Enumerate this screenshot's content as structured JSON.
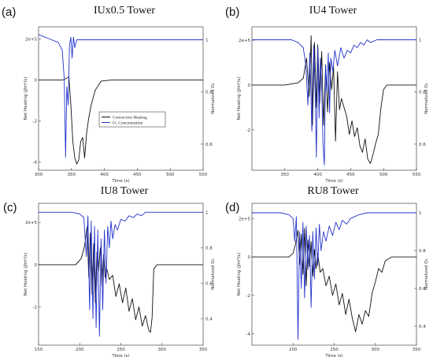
{
  "chart_data": [
    {
      "panel": "(a)",
      "title": "IUx0.5 Tower",
      "type": "line",
      "xlabel": "Time (s)",
      "ylabel": "Net Heating (J/m²/s)",
      "y2label": "Normalized O₂",
      "xlim": [
        300,
        550
      ],
      "ylim": [
        -4.4,
        2.6
      ],
      "y2lim": [
        0.5,
        1.05
      ],
      "xticks": [
        "300",
        "350",
        "400",
        "450",
        "500",
        "550"
      ],
      "yticks": [
        {
          "v": 2,
          "t": "2e+5"
        },
        {
          "v": 0,
          "t": "0"
        },
        {
          "v": -2,
          "t": "-2"
        },
        {
          "v": -4,
          "t": "-4"
        }
      ],
      "y2ticks": [
        {
          "v": 1,
          "t": "1"
        },
        {
          "v": 0.8,
          "t": "0.8"
        },
        {
          "v": 0.6,
          "t": "0.6"
        }
      ],
      "legend": [
        "Convective Heating",
        "O₂ Concentration"
      ],
      "series": [
        {
          "name": "Convective Heating",
          "color": "#111111",
          "axis": "left",
          "x": [
            300,
            320,
            335,
            338,
            342,
            346,
            349,
            352,
            355,
            358,
            361,
            364,
            367,
            370,
            373,
            376,
            380,
            386,
            395,
            410,
            450,
            500,
            550
          ],
          "y": [
            0,
            0,
            0,
            0.02,
            0.08,
            0.15,
            -1.2,
            -3.0,
            -3.8,
            -4.1,
            -3.9,
            -3.0,
            -2.8,
            -3.8,
            -2.6,
            -1.9,
            -1.2,
            -0.5,
            -0.05,
            0,
            0,
            0,
            0
          ]
        },
        {
          "name": "O₂ Concentration",
          "color": "#2233cc",
          "axis": "right",
          "x": [
            300,
            320,
            330,
            336,
            339,
            341,
            343,
            345,
            347,
            349,
            351,
            353,
            355,
            358,
            362,
            370,
            400,
            450,
            500,
            550
          ],
          "y": [
            1.02,
            1.0,
            0.99,
            0.96,
            0.85,
            0.55,
            0.82,
            0.75,
            0.98,
            1.01,
            0.93,
            1.01,
            0.97,
            1.0,
            1.0,
            1.0,
            1.0,
            1.0,
            1.0,
            1.0
          ]
        }
      ]
    },
    {
      "panel": "(b)",
      "title": "IU4 Tower",
      "type": "line",
      "xlabel": "Time (s)",
      "ylabel": "Net Heating (J/m²/s)",
      "y2label": "Normalized O₂",
      "xlim": [
        300,
        550
      ],
      "ylim": [
        -3.8,
        2.6
      ],
      "y2lim": [
        0.5,
        1.05
      ],
      "xticks": [
        "350",
        "400",
        "450",
        "500",
        "550"
      ],
      "yticks": [
        {
          "v": 2,
          "t": "2e+5"
        },
        {
          "v": 0,
          "t": "0"
        },
        {
          "v": -2,
          "t": "-2"
        }
      ],
      "y2ticks": [
        {
          "v": 1,
          "t": "1"
        },
        {
          "v": 0.8,
          "t": "0.8"
        },
        {
          "v": 0.6,
          "t": "0.6"
        }
      ],
      "series": [
        {
          "name": "Convective Heating",
          "color": "#111111",
          "axis": "left",
          "x": [
            300,
            350,
            370,
            378,
            383,
            387,
            390,
            392,
            395,
            398,
            400,
            403,
            406,
            409,
            412,
            415,
            418,
            421,
            424,
            427,
            430,
            433,
            436,
            440,
            444,
            448,
            452,
            456,
            460,
            464,
            468,
            472,
            476,
            480,
            484,
            488,
            492,
            496,
            500,
            505,
            510,
            530,
            550
          ],
          "y": [
            0,
            0,
            0.1,
            0.3,
            1.2,
            -0.5,
            2.2,
            -1.8,
            1.9,
            -1.0,
            1.8,
            -0.8,
            1.5,
            -1.8,
            0.9,
            -1.2,
            1.0,
            -0.2,
            0.8,
            -2.5,
            0.6,
            -1.1,
            -0.6,
            -1.0,
            -1.4,
            -2.2,
            -1.6,
            -2.3,
            -1.9,
            -2.7,
            -3.0,
            -2.4,
            -3.3,
            -3.5,
            -3.1,
            -2.6,
            -2.2,
            -1.0,
            -0.2,
            0,
            0,
            0,
            0
          ]
        },
        {
          "name": "O₂ Concentration",
          "color": "#2233cc",
          "axis": "right",
          "x": [
            300,
            340,
            360,
            370,
            378,
            382,
            385,
            388,
            391,
            394,
            396,
            398,
            400,
            402,
            404,
            406,
            408,
            410,
            412,
            414,
            416,
            418,
            420,
            423,
            426,
            430,
            435,
            440,
            445,
            450,
            455,
            460,
            465,
            470,
            475,
            480,
            490,
            510,
            550
          ],
          "y": [
            1.0,
            1.0,
            1.0,
            0.99,
            0.97,
            0.9,
            0.75,
            0.95,
            0.65,
            0.98,
            0.8,
            0.55,
            0.97,
            0.7,
            0.93,
            0.82,
            0.6,
            0.52,
            0.9,
            0.8,
            0.95,
            0.72,
            0.93,
            0.88,
            0.96,
            0.9,
            0.97,
            0.93,
            0.96,
            0.95,
            0.98,
            0.97,
            0.99,
            0.98,
            1.0,
            0.99,
            1.0,
            1.0,
            1.0
          ]
        }
      ]
    },
    {
      "panel": "(c)",
      "title": "IU8 Tower",
      "type": "line",
      "xlabel": "Time (s)",
      "ylabel": "Net Heating (J/m²/s)",
      "y2label": "Normalized O₂",
      "xlim": [
        150,
        350
      ],
      "ylim": [
        -3.8,
        2.9
      ],
      "y2lim": [
        0.25,
        1.05
      ],
      "xticks": [
        "150",
        "200",
        "250",
        "300",
        "350"
      ],
      "yticks": [
        {
          "v": 2,
          "t": "2e+5"
        },
        {
          "v": 0,
          "t": "0"
        },
        {
          "v": -2,
          "t": "-2"
        }
      ],
      "y2ticks": [
        {
          "v": 1,
          "t": "1"
        },
        {
          "v": 0.8,
          "t": "0.8"
        },
        {
          "v": 0.6,
          "t": "0.6"
        },
        {
          "v": 0.4,
          "t": "0.4"
        }
      ],
      "series": [
        {
          "name": "Convective Heating",
          "color": "#111111",
          "axis": "left",
          "x": [
            150,
            195,
            202,
            206,
            209,
            211,
            213,
            215,
            217,
            219,
            221,
            223,
            225,
            227,
            229,
            231,
            233,
            236,
            240,
            244,
            248,
            252,
            256,
            260,
            264,
            268,
            272,
            276,
            280,
            284,
            286,
            288,
            290,
            294,
            300,
            320,
            350
          ],
          "y": [
            0,
            0,
            0.3,
            0.9,
            1.8,
            -0.6,
            1.5,
            -1.4,
            1.0,
            -1.8,
            0.6,
            -0.3,
            0.8,
            -1.0,
            0.5,
            -0.6,
            -0.2,
            -0.7,
            -0.5,
            -1.5,
            -0.9,
            -1.8,
            -1.1,
            -2.2,
            -1.6,
            -2.6,
            -2.0,
            -2.9,
            -2.4,
            -3.1,
            -3.2,
            -2.5,
            -0.2,
            0,
            0,
            0,
            0
          ]
        },
        {
          "name": "O₂ Concentration",
          "color": "#2233cc",
          "axis": "right",
          "x": [
            150,
            190,
            200,
            205,
            208,
            210,
            212,
            214,
            216,
            218,
            220,
            222,
            224,
            226,
            228,
            230,
            232,
            234,
            236,
            238,
            240,
            243,
            246,
            250,
            255,
            260,
            265,
            270,
            275,
            280,
            285,
            300,
            350
          ],
          "y": [
            1.0,
            1.0,
            0.99,
            0.97,
            0.75,
            0.98,
            0.45,
            0.95,
            0.4,
            0.92,
            0.35,
            0.9,
            0.3,
            0.85,
            0.45,
            0.9,
            0.6,
            0.92,
            0.8,
            0.95,
            0.85,
            0.93,
            0.9,
            0.96,
            0.95,
            0.98,
            0.97,
            0.99,
            0.98,
            1.0,
            1.0,
            1.0,
            1.0
          ]
        }
      ]
    },
    {
      "panel": "(d)",
      "title": "RU8 Tower",
      "type": "line",
      "xlabel": "Time (s)",
      "ylabel": "Net Heating (J/m²/s)",
      "y2label": "Normalized O₂",
      "xlim": [
        150,
        350
      ],
      "ylim": [
        -4.6,
        2.8
      ],
      "y2lim": [
        0.3,
        1.05
      ],
      "xticks": [
        "200",
        "250",
        "300",
        "350"
      ],
      "yticks": [
        {
          "v": 2,
          "t": "2e+5"
        },
        {
          "v": 0,
          "t": "0"
        },
        {
          "v": -2,
          "t": "-2"
        },
        {
          "v": -4,
          "t": "-4"
        }
      ],
      "y2ticks": [
        {
          "v": 1,
          "t": "1"
        },
        {
          "v": 0.8,
          "t": "0.8"
        },
        {
          "v": 0.6,
          "t": "0.6"
        },
        {
          "v": 0.4,
          "t": "0.4"
        }
      ],
      "series": [
        {
          "name": "Convective Heating",
          "color": "#111111",
          "axis": "left",
          "x": [
            150,
            195,
            200,
            203,
            206,
            208,
            210,
            212,
            214,
            216,
            218,
            220,
            222,
            224,
            226,
            228,
            230,
            233,
            236,
            240,
            244,
            248,
            252,
            256,
            260,
            264,
            268,
            272,
            276,
            280,
            284,
            288,
            292,
            296,
            300,
            304,
            308,
            312,
            320,
            335,
            350
          ],
          "y": [
            0,
            0,
            0.2,
            0.7,
            1.4,
            -0.4,
            1.2,
            -0.9,
            1.5,
            -1.5,
            0.9,
            -0.5,
            0.8,
            -1.0,
            0.4,
            -0.6,
            0.2,
            -0.8,
            -0.6,
            -1.5,
            -1.0,
            -2.0,
            -1.4,
            -2.5,
            -1.9,
            -3.0,
            -2.2,
            -3.2,
            -3.9,
            -3.0,
            -3.5,
            -2.8,
            -3.1,
            -1.9,
            -1.3,
            -0.6,
            -0.8,
            -0.2,
            0,
            0,
            0
          ]
        },
        {
          "name": "O₂ Concentration",
          "color": "#2233cc",
          "axis": "right",
          "x": [
            150,
            185,
            195,
            200,
            202,
            204,
            206,
            208,
            210,
            212,
            214,
            216,
            218,
            220,
            222,
            224,
            226,
            228,
            230,
            232,
            234,
            237,
            240,
            244,
            248,
            252,
            256,
            260,
            265,
            270,
            275,
            280,
            290,
            300,
            320,
            350
          ],
          "y": [
            1.0,
            1.0,
            0.99,
            0.97,
            0.85,
            0.98,
            0.33,
            0.9,
            0.6,
            0.95,
            0.55,
            0.93,
            0.7,
            0.88,
            0.5,
            0.9,
            0.65,
            0.92,
            0.72,
            0.94,
            0.8,
            0.9,
            0.85,
            0.93,
            0.88,
            0.95,
            0.91,
            0.96,
            0.94,
            0.97,
            0.98,
            0.99,
            1.0,
            1.0,
            1.0,
            1.0
          ]
        }
      ]
    }
  ]
}
